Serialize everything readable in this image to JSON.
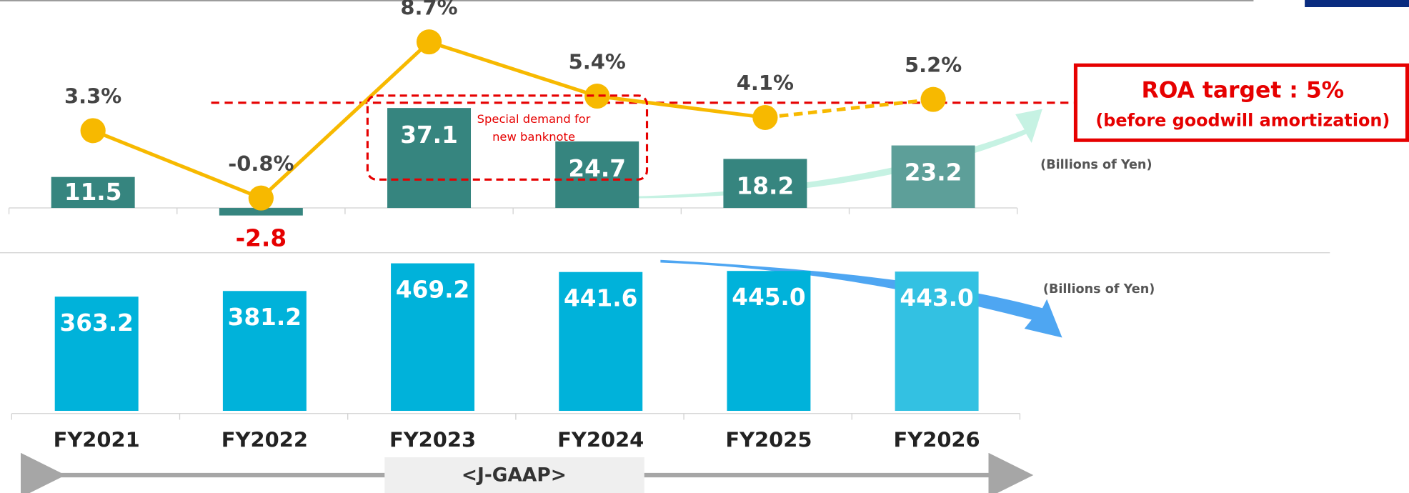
{
  "chart_data": [
    {
      "type": "bar",
      "categories": [
        "FY2021",
        "FY2022",
        "FY2023",
        "FY2024",
        "FY2025",
        "FY2026"
      ],
      "ylim": [
        -10,
        50
      ],
      "y2lim": [
        -5,
        10
      ],
      "series": [
        {
          "type": "bar",
          "colors": [
            "#36857f",
            "#36857f",
            "#36857f",
            "#36857f",
            "#36857f",
            "#5d9f99"
          ],
          "values": [
            11.5,
            -2.8,
            37.1,
            24.7,
            18.2,
            23.2
          ]
        },
        {
          "type": "line",
          "axis": "y2",
          "color": "#f7b900",
          "values": [
            3.3,
            -0.8,
            8.7,
            5.4,
            4.1,
            5.2
          ],
          "value_labels": [
            "3.3%",
            "-0.8%",
            "8.7%",
            "5.4%",
            "4.1%",
            "5.2%"
          ]
        }
      ],
      "target": {
        "value": 5,
        "label": "ROA target : 5%",
        "note": "(before goodwill amortization)",
        "color": "#e60000"
      },
      "annotation": "Special demand for new banknote",
      "unit": "(Billions of Yen)"
    },
    {
      "type": "bar",
      "categories": [
        "FY2021",
        "FY2022",
        "FY2023",
        "FY2024",
        "FY2025",
        "FY2026"
      ],
      "ylim": [
        0,
        500
      ],
      "colors": [
        "#00b2da",
        "#00b2da",
        "#00b2da",
        "#00b2da",
        "#00b2da",
        "#33c1e2"
      ],
      "values": [
        363.2,
        381.2,
        469.2,
        441.6,
        445.0,
        443.0
      ],
      "value_labels": [
        "363.2",
        "381.2",
        "469.2",
        "441.6",
        "445.0",
        "443.0"
      ],
      "unit": "(Billions of Yen)",
      "footer": "<J-GAAP>"
    }
  ]
}
